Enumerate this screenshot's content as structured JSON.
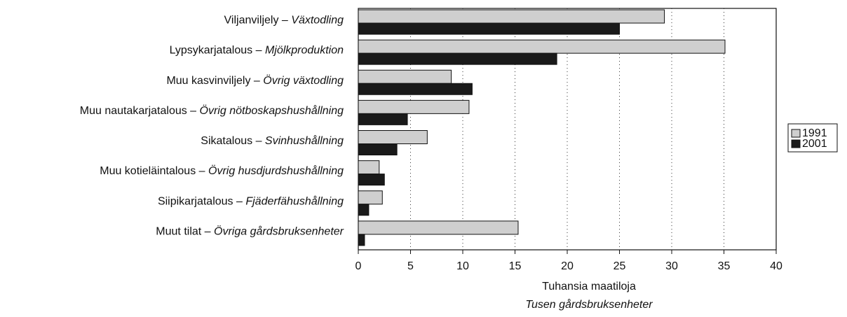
{
  "chart_data": {
    "type": "barh",
    "categories": [
      "Viljanviljely –",
      "Lypsykarjatalous –",
      "Muu kasvinviljely –",
      "Muu nautakarjatalous –",
      "Sikatalous –",
      "Muu kotieläintalous –",
      "Siipikarjatalous –",
      "Muut tilat –"
    ],
    "categories_sv": [
      "Växtodling",
      "Mjölkproduktion",
      "Övrig växtodling",
      "Övrig nötboskapshushållning",
      "Svinhushållning",
      "Övrig husdjurdshushållning",
      "Fjäderfähushållning",
      "Övriga gårdsbruksenheter"
    ],
    "series": [
      {
        "name": "1991",
        "color": "#cfcfcf",
        "values": [
          29.3,
          35.1,
          8.9,
          10.6,
          6.6,
          2.0,
          2.3,
          15.3
        ]
      },
      {
        "name": "2001",
        "color": "#1a1a1a",
        "values": [
          25.0,
          19.0,
          10.9,
          4.7,
          3.7,
          2.5,
          1.0,
          0.6
        ]
      }
    ],
    "xlabel": "Tuhansia maatiloja",
    "xlabel_sv": "Tusen gårdsbruksenheter",
    "xlim": [
      0,
      40
    ],
    "xticks": [
      0,
      5,
      10,
      15,
      20,
      25,
      30,
      35,
      40
    ],
    "grid": true,
    "legend": "right"
  }
}
